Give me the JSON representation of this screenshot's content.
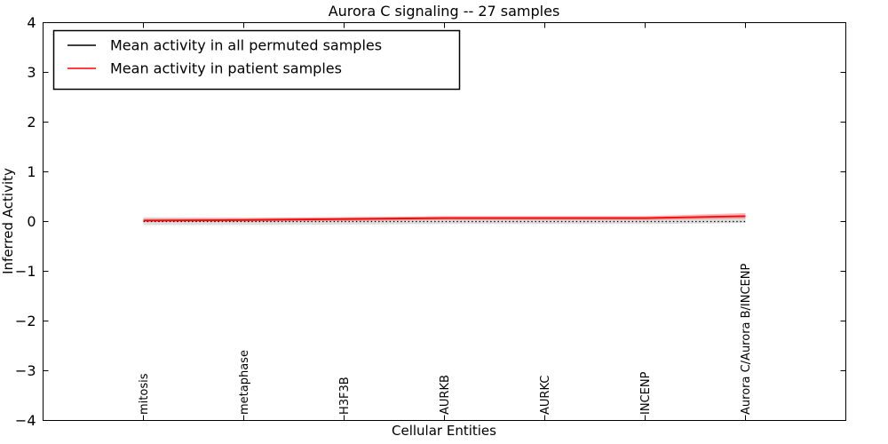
{
  "figure": {
    "background": "#ffffff",
    "frame_color": "#000000"
  },
  "chart_data": {
    "type": "line",
    "title": "Aurora C signaling -- 27 samples",
    "xlabel": "Cellular Entities",
    "ylabel": "Inferred Activity",
    "xlim": [
      0,
      8
    ],
    "ylim": [
      -4,
      4
    ],
    "yticks": [
      -4,
      -3,
      -2,
      -1,
      0,
      1,
      2,
      3,
      4
    ],
    "x": [
      1,
      2,
      3,
      4,
      5,
      6,
      7
    ],
    "categories": [
      "mitosis",
      "metaphase",
      "H3F3B",
      "AURKB",
      "AURKC",
      "INCENP",
      "Aurora C/Aurora B/INCENP"
    ],
    "grid": false,
    "legend_position": "upper-left",
    "series": [
      {
        "name": "Mean activity in all permuted samples",
        "color": "#000000",
        "linestyle": "dotted",
        "legend_linestyle": "solid",
        "values": [
          0.0,
          0.0,
          0.0,
          0.0,
          0.0,
          0.0,
          0.0
        ],
        "band": {
          "color": "#000000",
          "opacity": 0.13,
          "upper": [
            0.09,
            0.08,
            0.08,
            0.07,
            0.07,
            0.06,
            0.1
          ],
          "lower": [
            -0.07,
            -0.07,
            -0.06,
            -0.05,
            -0.05,
            -0.05,
            -0.03
          ]
        }
      },
      {
        "name": "Mean activity in patient samples",
        "color": "#ff0000",
        "linestyle": "solid",
        "legend_linestyle": "solid",
        "values": [
          0.02,
          0.03,
          0.05,
          0.07,
          0.07,
          0.07,
          0.11
        ],
        "band": {
          "color": "#ff0000",
          "opacity": 0.28,
          "upper": [
            0.06,
            0.07,
            0.09,
            0.11,
            0.11,
            0.11,
            0.17
          ],
          "lower": [
            -0.01,
            0.0,
            0.01,
            0.03,
            0.03,
            0.03,
            0.06
          ]
        }
      }
    ]
  }
}
